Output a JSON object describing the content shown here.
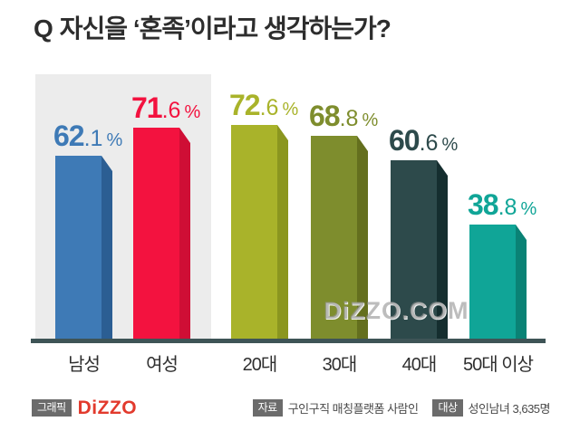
{
  "title": {
    "prefix": "Q",
    "text": "자신을 ‘혼족’이라고 생각하는가?"
  },
  "chart_data": {
    "type": "bar",
    "title": "Q 자신을 ‘혼족’이라고 생각하는가?",
    "categories": [
      "남성",
      "여성",
      "20대",
      "30대",
      "40대",
      "50대 이상"
    ],
    "values": [
      62.1,
      71.6,
      72.6,
      68.8,
      60.6,
      38.8
    ],
    "value_labels": [
      "62.1 %",
      "71.6 %",
      "72.6 %",
      "68.8 %",
      "60.6 %",
      "38.8 %"
    ],
    "unit": "%",
    "ylim": [
      0,
      100
    ],
    "grid": false,
    "legend": false,
    "highlight_panel_categories": [
      "남성",
      "여성"
    ],
    "bar_colors": [
      "#3e7ab6",
      "#f3123f",
      "#a9b32a",
      "#7e8d2d",
      "#2d4a4b",
      "#10a597"
    ],
    "bar_side_colors": [
      "#2b5e93",
      "#cf0e35",
      "#8b961f",
      "#646f1e",
      "#152e2f",
      "#0a8275"
    ],
    "axis_color": "#3e5456",
    "panel_color": "#ececec"
  },
  "watermark": "DIZZO.COM",
  "footer": {
    "graphic_badge": "그래픽",
    "brand": "DIZZO",
    "source_badge": "자료",
    "source_text": "구인구직 매칭플랫폼 사람인",
    "target_badge": "대상",
    "target_text": "성인남녀 3,635명"
  },
  "colors": {
    "brand_red": "#e23a2d",
    "badge_bg": "#6b6b6b",
    "title_text": "#2d2d2d"
  }
}
